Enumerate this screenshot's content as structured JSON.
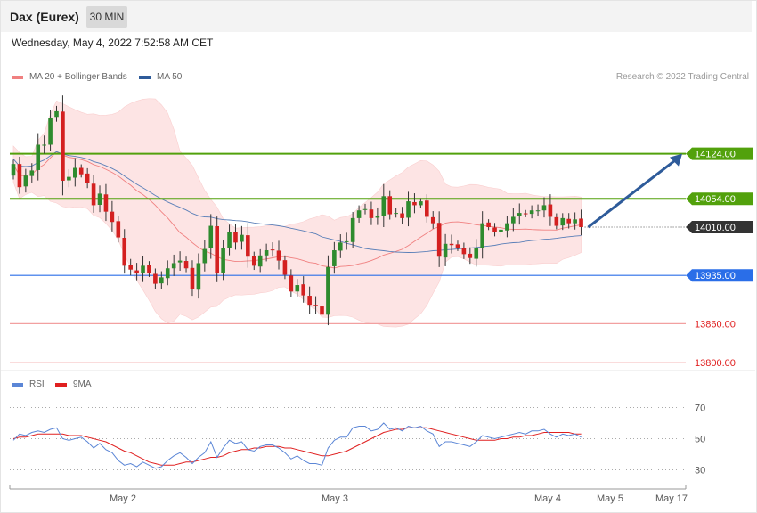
{
  "header": {
    "title": "Dax (Eurex)",
    "timeframe": "30 MIN"
  },
  "datetime": "Wednesday, May 4, 2022 7:52:58 AM CET",
  "legend": {
    "price": [
      {
        "name": "MA 20 + Bollinger Bands",
        "color": "#f08080"
      },
      {
        "name": "MA 50",
        "color": "#2e5b9a"
      }
    ],
    "rsi": [
      {
        "name": "RSI",
        "color": "#5b86d6"
      },
      {
        "name": "9MA",
        "color": "#e02020"
      }
    ]
  },
  "credit": "Research © 2022 Trading Central",
  "chart_data": {
    "type": "candlestick",
    "ylim": [
      13790,
      14230
    ],
    "levels": [
      {
        "value": 14124.0,
        "label": "14124.00",
        "kind": "resistance",
        "color": "#52a10c"
      },
      {
        "value": 14054.0,
        "label": "14054.00",
        "kind": "resistance",
        "color": "#52a10c"
      },
      {
        "value": 14010.0,
        "label": "14010.00",
        "kind": "last",
        "color": "#333333"
      },
      {
        "value": 13935.0,
        "label": "13935.00",
        "kind": "pivot",
        "color": "#2a6ee8"
      },
      {
        "value": 13860.0,
        "label": "13860.00",
        "kind": "support",
        "color": "#e02020"
      },
      {
        "value": 13800.0,
        "label": "13800.00",
        "kind": "support",
        "color": "#e02020"
      }
    ],
    "forecast_arrow": {
      "from": 14010,
      "to": 14124
    },
    "x_labels": [
      "May 2",
      "May 3",
      "May 4",
      "May 5",
      "May 17"
    ],
    "closes": [
      14108,
      14072,
      14090,
      14098,
      14138,
      14138,
      14180,
      14190,
      14082,
      14088,
      14102,
      14092,
      14078,
      14044,
      14062,
      14034,
      14018,
      13994,
      13950,
      13944,
      13938,
      13950,
      13938,
      13922,
      13932,
      13946,
      13954,
      13958,
      13946,
      13914,
      13954,
      13976,
      14012,
      13938,
      13978,
      14002,
      13986,
      13998,
      13964,
      13950,
      13966,
      13974,
      13974,
      13958,
      13936,
      13910,
      13920,
      13904,
      13888,
      13888,
      13874,
      13948,
      13974,
      13986,
      13988,
      14024,
      14036,
      14038,
      14024,
      14028,
      14058,
      14030,
      14032,
      14024,
      14050,
      14044,
      14050,
      14026,
      14016,
      13964,
      13984,
      13982,
      13978,
      13968,
      13962,
      13978,
      14016,
      14010,
      14002,
      14006,
      14016,
      14026,
      14032,
      14030,
      14036,
      14036,
      14044,
      14026,
      14012,
      14024,
      14016,
      14022,
      14010
    ],
    "rsi": {
      "ylim": [
        20,
        80
      ],
      "levels": [
        70,
        50,
        30
      ],
      "rsi_values": [
        49,
        53,
        52,
        54,
        55,
        54,
        56,
        57,
        50,
        49,
        50,
        51,
        48,
        44,
        47,
        43,
        41,
        36,
        33,
        34,
        32,
        35,
        33,
        31,
        32,
        36,
        39,
        41,
        38,
        34,
        38,
        41,
        48,
        38,
        44,
        49,
        47,
        48,
        43,
        42,
        45,
        46,
        46,
        44,
        41,
        37,
        39,
        36,
        34,
        34,
        33,
        44,
        49,
        51,
        51,
        57,
        58,
        58,
        55,
        56,
        60,
        56,
        57,
        55,
        58,
        57,
        58,
        55,
        53,
        45,
        48,
        48,
        47,
        46,
        45,
        48,
        52,
        51,
        50,
        51,
        52,
        53,
        54,
        53,
        55,
        55,
        56,
        53,
        51,
        53,
        52,
        53,
        51
      ],
      "ma_values": [
        50,
        51,
        51,
        52,
        53,
        53,
        53,
        53,
        53,
        52,
        52,
        52,
        51,
        50,
        49,
        48,
        46,
        44,
        42,
        41,
        39,
        37,
        35,
        34,
        33,
        33,
        33,
        34,
        35,
        35,
        36,
        37,
        38,
        38,
        39,
        41,
        42,
        43,
        43,
        44,
        44,
        45,
        45,
        45,
        44,
        44,
        43,
        42,
        41,
        40,
        39,
        39,
        40,
        41,
        42,
        44,
        46,
        48,
        50,
        52,
        54,
        55,
        56,
        56,
        57,
        57,
        57,
        57,
        56,
        55,
        54,
        53,
        52,
        51,
        50,
        49,
        49,
        49,
        49,
        50,
        50,
        51,
        51,
        52,
        52,
        53,
        54,
        54,
        54,
        54,
        54,
        53,
        53
      ]
    }
  }
}
